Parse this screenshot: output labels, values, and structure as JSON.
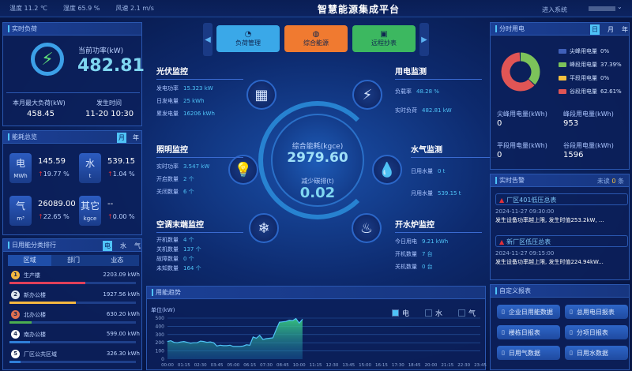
{
  "header": {
    "title": "智慧能源集成平台",
    "weather": [
      {
        "label": "温度",
        "value": "11.2 ℃"
      },
      {
        "label": "湿度",
        "value": "65.9 %"
      },
      {
        "label": "风速",
        "value": "2.1 m/s"
      }
    ],
    "enter_system": "进入系统",
    "user_chevron": "chevron-down-icon"
  },
  "realtime_load": {
    "title": "实时负荷",
    "power_label": "当前功率(kW)",
    "power_value": "482.81",
    "max_label": "本月最大负荷(kW)",
    "max_value": "458.45",
    "time_label": "发生时间",
    "time_value": "11-20 10:30",
    "icon": "lightning-icon"
  },
  "overview": {
    "title": "能耗总览",
    "toggles": [
      "月",
      "年"
    ],
    "active": "月",
    "items": [
      {
        "name": "电",
        "unit": "MWh",
        "value": "145.59",
        "change": "19.77 %"
      },
      {
        "name": "水",
        "unit": "t",
        "value": "539.15",
        "change": "1.04 %"
      },
      {
        "name": "气",
        "unit": "m³",
        "value": "26089.00",
        "change": "22.65 %"
      },
      {
        "name": "其它",
        "unit": "kgce",
        "value": "--",
        "change": "0.00 %"
      }
    ]
  },
  "ranking": {
    "title": "日用能分类排行",
    "toggles": [
      "电",
      "水",
      "气"
    ],
    "active": "电",
    "tabs": [
      "区域",
      "部门",
      "业态"
    ],
    "items": [
      {
        "rank": "1",
        "name": "生产楼",
        "value": "2203.09 kWh",
        "pct": 100,
        "color": "#e0405a"
      },
      {
        "rank": "2",
        "name": "新办公楼",
        "value": "1927.56 kWh",
        "pct": 87,
        "color": "#f5b840"
      },
      {
        "rank": "3",
        "name": "北办公楼",
        "value": "630.20 kWh",
        "pct": 29,
        "color": "#4caf50"
      },
      {
        "rank": "4",
        "name": "南办公楼",
        "value": "599.00 kWh",
        "pct": 27,
        "color": "#2f7fd8"
      },
      {
        "rank": "5",
        "name": "厂区公共区域",
        "value": "326.30 kWh",
        "pct": 15,
        "color": "#2f7fd8"
      }
    ]
  },
  "nav": {
    "buttons": [
      {
        "label": "负荷管理",
        "color": "#3aa8e8",
        "icon": "gauge-icon"
      },
      {
        "label": "综合能源",
        "color": "#f07a30",
        "icon": "globe-icon"
      },
      {
        "label": "远程抄表",
        "color": "#3cb860",
        "icon": "meter-icon"
      }
    ]
  },
  "center": {
    "energy_label": "综合能耗(kgce)",
    "energy_value": "2979.60",
    "carbon_label": "减少碳排(t)",
    "carbon_value": "0.02"
  },
  "monitors": {
    "pv": {
      "title": "光伏监控",
      "rows": [
        [
          "发电功率",
          "15.323 kW"
        ],
        [
          "日发电量",
          "25 kWh"
        ],
        [
          "累发电量",
          "16206 kWh"
        ]
      ]
    },
    "power": {
      "title": "用电监测",
      "rows": [
        [
          "负载率",
          "48.28 %"
        ],
        [
          "实时负荷",
          "482.81 kW"
        ]
      ]
    },
    "light": {
      "title": "照明监控",
      "rows": [
        [
          "实时功率",
          "3.547 kW"
        ],
        [
          "开启数量",
          "2 个"
        ],
        [
          "关闭数量",
          "6 个"
        ]
      ]
    },
    "water": {
      "title": "水气监测",
      "rows": [
        [
          "日用水量",
          "0 t"
        ],
        [
          "月用水量",
          "539.15 t"
        ]
      ]
    },
    "ac": {
      "title": "空调末端监控",
      "rows": [
        [
          "开机数量",
          "4 个"
        ],
        [
          "关机数量",
          "137 个"
        ],
        [
          "故障数量",
          "0 个"
        ],
        [
          "未知数量",
          "164 个"
        ]
      ]
    },
    "boiler": {
      "title": "开水炉监控",
      "rows": [
        [
          "今日用电",
          "9.21 kWh"
        ],
        [
          "开机数量",
          "7 台"
        ],
        [
          "关机数量",
          "0 台"
        ]
      ]
    }
  },
  "tou": {
    "title": "分时用电",
    "toggles": [
      "日",
      "月",
      "年"
    ],
    "active": "日",
    "legend": [
      {
        "label": "尖峰用电量",
        "pct": "0%",
        "value": 0,
        "color": "#3f5fb8"
      },
      {
        "label": "峰段用电量",
        "pct": "37.39%",
        "value": 37.39,
        "color": "#7cc35a"
      },
      {
        "label": "平段用电量",
        "pct": "0%",
        "value": 0,
        "color": "#f5c040"
      },
      {
        "label": "谷段用电量",
        "pct": "62.61%",
        "value": 62.61,
        "color": "#e05555"
      }
    ],
    "stats": [
      [
        "尖峰用电量(kWh)",
        "0"
      ],
      [
        "峰段用电量(kWh)",
        "953"
      ],
      [
        "平段用电量(kWh)",
        "0"
      ],
      [
        "谷段用电量(kWh)",
        "1596"
      ]
    ]
  },
  "alarms": {
    "title": "实时告警",
    "unread_prefix": "未读",
    "unread_count": "0",
    "unread_suffix": "条",
    "items": [
      {
        "name": "厂区401低压总表",
        "time": "2024-11-27 09:30:00",
        "desc": "发生设备功率越上限, 发生时值253.2kW, ..."
      },
      {
        "name": "新厂区低压总表",
        "time": "2024-11-27 09:15:00",
        "desc": "发生设备功率越上限, 发生时值224.94kW..."
      }
    ]
  },
  "reports": {
    "title": "自定义报表",
    "buttons": [
      "企业日用能数据",
      "总用电日报表",
      "楼栋日报表",
      "分项日报表",
      "日用气数据",
      "日用水数据"
    ]
  },
  "trend": {
    "title": "用能趋势",
    "legend": [
      {
        "label": "电",
        "active": true
      },
      {
        "label": "水",
        "active": false
      },
      {
        "label": "气",
        "active": false
      }
    ]
  },
  "chart_data": {
    "type": "area",
    "ylabel": "单位(kW)",
    "ylim": [
      0,
      500
    ],
    "yticks": [
      0,
      100,
      200,
      300,
      400,
      500
    ],
    "xticks": [
      "00:00",
      "01:15",
      "02:30",
      "03:45",
      "05:00",
      "06:15",
      "07:30",
      "08:45",
      "10:00",
      "11:15",
      "12:30",
      "13:45",
      "15:00",
      "16:15",
      "17:30",
      "18:45",
      "20:00",
      "21:15",
      "22:30",
      "23:45"
    ],
    "grid": true,
    "color": "#4fc3f7",
    "series": [
      {
        "name": "电",
        "interval_minutes": 15,
        "start": "00:00",
        "values": [
          215,
          225,
          205,
          200,
          210,
          215,
          205,
          195,
          200,
          200,
          220,
          215,
          205,
          210,
          200,
          160,
          170,
          165,
          165,
          170,
          155,
          155,
          155,
          160,
          175,
          170,
          270,
          255,
          290,
          240,
          250,
          255,
          260,
          360,
          450,
          455,
          460,
          475,
          470,
          495,
          440,
          485
        ]
      }
    ]
  }
}
